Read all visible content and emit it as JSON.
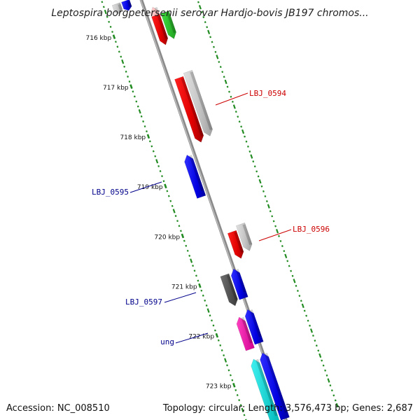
{
  "title": "Leptospira borgpetersenii serovar Hardjo-bovis JB197 chromos...",
  "footer": {
    "accession": "Accession: NC_008510",
    "stats": "Topology: circular; Length: 3,576,473 bp; Genes: 2,687"
  },
  "colors": {
    "backbone": "#8a8a8a",
    "ticks": "#228b22",
    "label_red": "#cc0000",
    "label_blue": "#00008b"
  },
  "ticks": [
    {
      "label": "716 kbp",
      "kbp": 716
    },
    {
      "label": "717 kbp",
      "kbp": 717
    },
    {
      "label": "718 kbp",
      "kbp": 718
    },
    {
      "label": "719 kbp",
      "kbp": 719
    },
    {
      "label": "720 kbp",
      "kbp": 720
    },
    {
      "label": "721 kbp",
      "kbp": 721
    },
    {
      "label": "722 kbp",
      "kbp": 722
    },
    {
      "label": "723 kbp",
      "kbp": 723
    }
  ],
  "labels": [
    {
      "text": "LBJ_0594",
      "color": "#cc0000"
    },
    {
      "text": "LBJ_0595",
      "color": "#00008b"
    },
    {
      "text": "LBJ_0596",
      "color": "#cc0000"
    },
    {
      "text": "LBJ_0597",
      "color": "#00008b"
    },
    {
      "text": "ung",
      "color": "#00008b"
    }
  ]
}
